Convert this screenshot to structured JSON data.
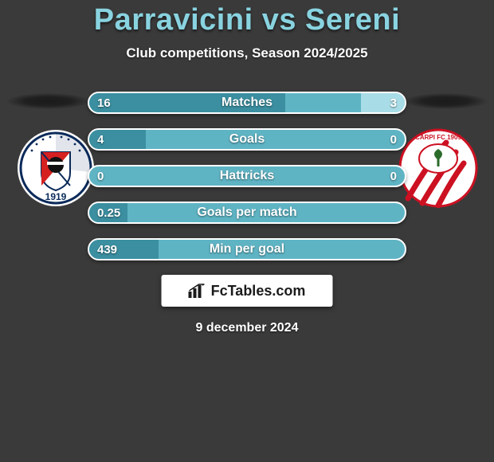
{
  "header": {
    "title": "Parravicini vs Sereni",
    "subtitle": "Club competitions, Season 2024/2025"
  },
  "colors": {
    "background": "#3a3a3a",
    "title": "#89d3e0",
    "bar_base": "#5fb4c4",
    "bar_fill_left": "#3b8fa0",
    "bar_fill_right": "#a8dce6",
    "bar_border": "#ffffff",
    "text": "#ffffff",
    "brand_bg": "#ffffff",
    "brand_text": "#1b1b1b"
  },
  "bars": [
    {
      "label": "Matches",
      "left": "16",
      "right": "3",
      "fill_left_pct": 62,
      "fill_right_pct": 14
    },
    {
      "label": "Goals",
      "left": "4",
      "right": "0",
      "fill_left_pct": 18,
      "fill_right_pct": 0
    },
    {
      "label": "Hattricks",
      "left": "0",
      "right": "0",
      "fill_left_pct": 0,
      "fill_right_pct": 0
    },
    {
      "label": "Goals per match",
      "left": "0.25",
      "right": "",
      "fill_left_pct": 12,
      "fill_right_pct": 0
    },
    {
      "label": "Min per goal",
      "left": "439",
      "right": "",
      "fill_left_pct": 22,
      "fill_right_pct": 0
    }
  ],
  "brand": {
    "text": "FcTables.com"
  },
  "date": "9 december 2024",
  "badges": {
    "left": {
      "name": "sestri-levante-badge"
    },
    "right": {
      "name": "carpi-badge"
    }
  }
}
